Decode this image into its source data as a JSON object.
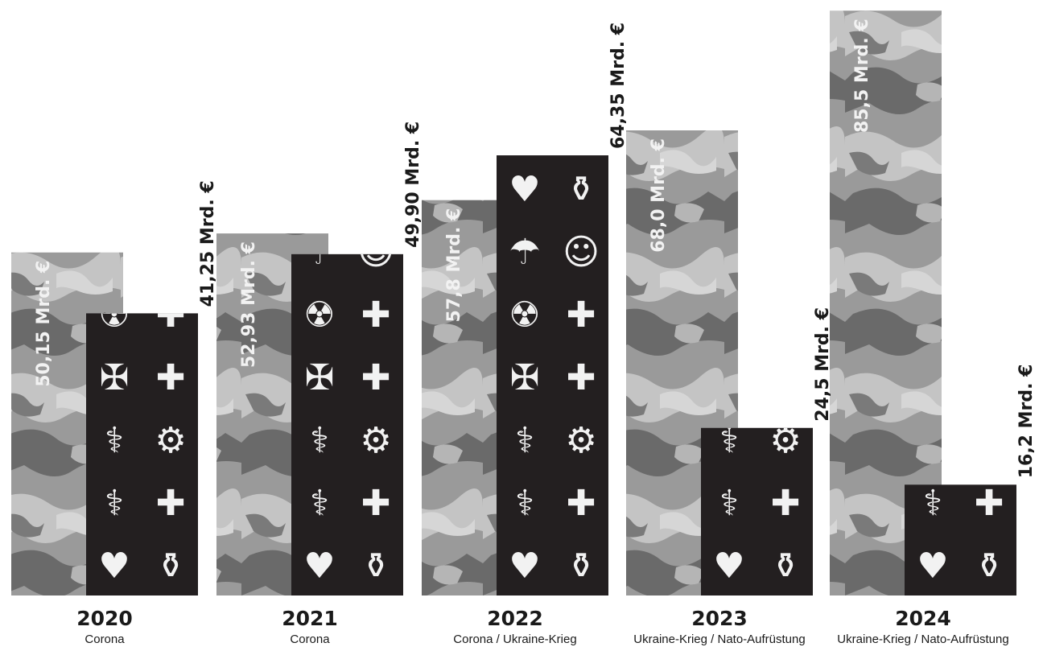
{
  "chart_data": {
    "type": "bar",
    "categories": [
      "2020",
      "2021",
      "2022",
      "2023",
      "2024"
    ],
    "subtitles": [
      "Corona",
      "Corona",
      "Corona / Ukraine-Krieg",
      "Ukraine-Krieg / Nato-Aufrüstung",
      "Ukraine-Krieg / Nato-Aufrüstung"
    ],
    "series": [
      {
        "pattern": "camouflage",
        "values": [
          50.15,
          52.93,
          57.8,
          68.0,
          85.5
        ],
        "labels": [
          "50,15 Mrd. €",
          "52,93 Mrd. €",
          "57,8 Mrd. €",
          "68,0 Mrd. €",
          "85,5 Mrd. €"
        ]
      },
      {
        "pattern": "medical-icons",
        "values": [
          41.25,
          49.9,
          64.35,
          24.5,
          16.2
        ],
        "labels": [
          "41,25 Mrd. €",
          "49,90 Mrd. €",
          "64,35 Mrd. €",
          "24,5 Mrd. €",
          "16,2 Mrd. €"
        ]
      }
    ],
    "ylim": [
      0,
      86
    ],
    "grid": false,
    "legend": "none"
  },
  "colors": {
    "camo": [
      "#8c8c8c",
      "#a8a8a8",
      "#c4c4c4",
      "#6a6a6a",
      "#d6d6d6"
    ],
    "medical_bg": "#231f20",
    "medical_icon": "#f2f2f2",
    "value_text_dark": "#1a1a1a",
    "value_text_light": "#f2f2f2"
  },
  "icons": [
    "heart-icon",
    "medicine-bottle-icon",
    "dropper-icon",
    "first-aid-kit-icon",
    "stethoscope-icon",
    "thermometer-icon",
    "bandage-icon",
    "blood-bag-icon",
    "syringe-icon",
    "hand-plus-icon",
    "umbrella-icon",
    "family-icon"
  ]
}
